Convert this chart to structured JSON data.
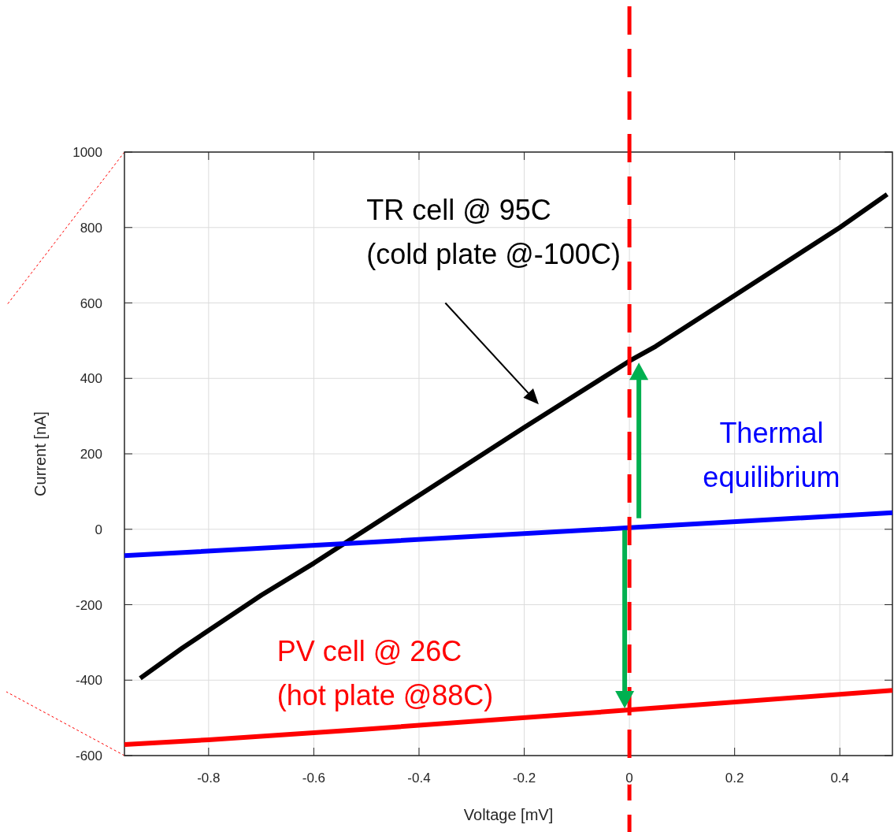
{
  "chart_data": {
    "type": "line",
    "xlabel": "Voltage [mV]",
    "ylabel": "Current [nA]",
    "xlim": [
      -0.96,
      0.5
    ],
    "xticks": [
      -0.8,
      -0.6,
      -0.4,
      -0.2,
      0,
      0.2,
      0.4
    ],
    "ylim": [
      -600,
      1000
    ],
    "yticks": [
      -600,
      -400,
      -200,
      0,
      200,
      400,
      600,
      800,
      1000
    ],
    "grid": true,
    "line_style": "solid",
    "series": [
      {
        "name": "TR cell @ 95C\n(cold plate @-100C)",
        "color": "#000000",
        "x": [
          -0.93,
          -0.85,
          -0.7,
          -0.6,
          -0.4,
          -0.2,
          0,
          0.05,
          0.2,
          0.4,
          0.49
        ],
        "values": [
          -395,
          -315,
          -175,
          -90,
          90,
          270,
          446,
          485,
          620,
          800,
          888
        ]
      },
      {
        "name": "Thermal\nequilibrium",
        "color": "#0000ff",
        "x": [
          -0.96,
          -0.5,
          0,
          0.5
        ],
        "values": [
          -70,
          -35,
          4,
          44
        ]
      },
      {
        "name": "PV cell @ 26C\n(hot plate @88C)",
        "color": "#ff0000",
        "x": [
          -0.96,
          -0.8,
          -0.5,
          0,
          0.5
        ],
        "values": [
          -571,
          -558,
          -530,
          -479,
          -427
        ]
      }
    ],
    "ref_lines": [
      {
        "axis": "x",
        "value": 0,
        "label": null,
        "color": "#ff0000",
        "line_style": "dashed"
      }
    ]
  }
}
